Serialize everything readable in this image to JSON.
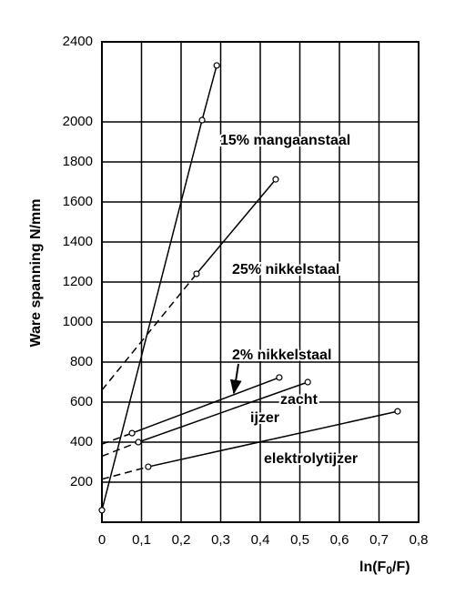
{
  "chart_data": {
    "type": "line",
    "y_label": "Ware spanning N/mm",
    "x_label": "ln(F0/F)",
    "xlim": [
      0,
      0.8
    ],
    "xticks": [
      0,
      {
        "value": 0.1,
        "label": "0,1"
      },
      {
        "value": 0.2,
        "label": "0,2"
      },
      {
        "value": 0.3,
        "label": "0,3"
      },
      {
        "value": 0.4,
        "label": "0,4"
      },
      {
        "value": 0.5,
        "label": "0,5"
      },
      {
        "value": 0.6,
        "label": "0,6"
      },
      {
        "value": 0.7,
        "label": "0,7"
      },
      {
        "value": 0.8,
        "label": "0,8"
      }
    ],
    "ylim": [
      0,
      2400
    ],
    "yticks": [
      200,
      400,
      600,
      800,
      1000,
      1200,
      1400,
      1600,
      1800,
      2000,
      2400
    ],
    "grid": true,
    "color": "#000000",
    "series": [
      {
        "name": "15% mangaanstaal",
        "x": [
          0,
          0.253,
          0.29
        ],
        "values": [
          60,
          2009,
          2282
        ],
        "markers": [
          true,
          true,
          true
        ],
        "line_styles": [
          "solid",
          "solid"
        ]
      },
      {
        "name": "25% nikkelstaal",
        "x": [
          0,
          0.239,
          0.439
        ],
        "values": [
          660,
          1241,
          1713
        ],
        "markers": [
          false,
          true,
          true
        ],
        "line_styles": [
          "dashed",
          "solid"
        ]
      },
      {
        "name": "2% nikkelstaal",
        "x": [
          0,
          0.076,
          0.448
        ],
        "values": [
          390,
          445,
          723
        ],
        "markers": [
          false,
          true,
          true
        ],
        "line_styles": [
          "dashed",
          "solid"
        ]
      },
      {
        "name": "zacht ijzer",
        "x": [
          0,
          0.092,
          0.52
        ],
        "values": [
          330,
          400,
          700
        ],
        "markers": [
          false,
          true,
          true
        ],
        "line_styles": [
          "dashed",
          "solid"
        ]
      },
      {
        "name": "elektrolytijzer",
        "x": [
          0,
          0.117,
          0.747
        ],
        "values": [
          215,
          277,
          554
        ],
        "markers": [
          false,
          true,
          true
        ],
        "line_styles": [
          "dashed",
          "solid"
        ]
      }
    ]
  }
}
